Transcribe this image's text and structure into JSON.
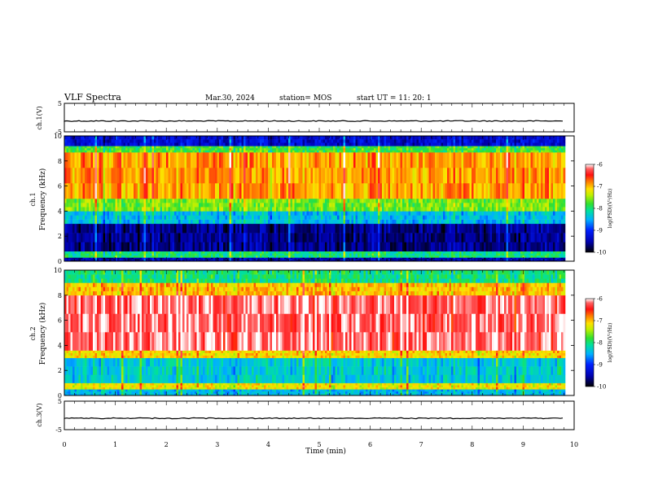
{
  "header": {
    "title": "VLF Spectra",
    "date": "Mar.30, 2024",
    "station": "station= MOS",
    "start_ut": "start  UT =   11: 20: 1"
  },
  "chart_data": {
    "type": "heatmap",
    "title": "VLF Spectra",
    "xlabel": "Time  (min)",
    "xlim": [
      0,
      10
    ],
    "xticks": [
      "0",
      "1",
      "2",
      "3",
      "4",
      "5",
      "6",
      "7",
      "8",
      "9",
      "10"
    ],
    "data_end_min": 9.82,
    "panels": [
      {
        "id": "ch1-waveform",
        "type": "line",
        "ylabel": "ch.1(V)",
        "ylim": [
          -5,
          5
        ],
        "yticks": [
          "5",
          "-5"
        ],
        "level_v": -1.2
      },
      {
        "id": "ch1-spectrogram",
        "type": "heatmap",
        "ylabel_top": "ch.1",
        "ylabel": "Frequency (kHz)",
        "ylim": [
          0,
          10
        ],
        "yticks": [
          "0",
          "2",
          "4",
          "6",
          "8",
          "10"
        ],
        "bands_khz": [
          {
            "from": 0.0,
            "to": 0.3,
            "level": -9.5
          },
          {
            "from": 0.3,
            "to": 0.8,
            "level": -8.0
          },
          {
            "from": 0.8,
            "to": 3.0,
            "level": -9.6
          },
          {
            "from": 3.0,
            "to": 4.0,
            "level": -8.4
          },
          {
            "from": 4.0,
            "to": 5.0,
            "level": -7.6
          },
          {
            "from": 5.0,
            "to": 8.7,
            "level": -6.9
          },
          {
            "from": 8.7,
            "to": 9.2,
            "level": -7.8
          },
          {
            "from": 9.2,
            "to": 10.0,
            "level": -9.3
          }
        ],
        "colorbar": {
          "label": "log(PSD)(V²/Hz)",
          "min": -10,
          "max": -6,
          "ticks": [
            "-6",
            "-7",
            "-8",
            "-9",
            "-10"
          ]
        }
      },
      {
        "id": "ch2-spectrogram",
        "type": "heatmap",
        "ylabel_top": "ch.2",
        "ylabel": "Frequency (kHz)",
        "ylim": [
          0,
          10
        ],
        "yticks": [
          "0",
          "2",
          "4",
          "6",
          "8",
          "10"
        ],
        "bands_khz": [
          {
            "from": 0.0,
            "to": 0.5,
            "level": -8.4
          },
          {
            "from": 0.5,
            "to": 1.0,
            "level": -7.2
          },
          {
            "from": 1.0,
            "to": 3.0,
            "level": -8.3
          },
          {
            "from": 3.0,
            "to": 3.6,
            "level": -7.1
          },
          {
            "from": 3.6,
            "to": 8.0,
            "level": -6.2
          },
          {
            "from": 8.0,
            "to": 9.0,
            "level": -7.0
          },
          {
            "from": 9.0,
            "to": 10.0,
            "level": -8.0
          }
        ],
        "colorbar": {
          "label": "log(PSD)(V²/Hz)",
          "min": -10,
          "max": -6,
          "ticks": [
            "-6",
            "-7",
            "-8",
            "-9",
            "-10"
          ]
        }
      },
      {
        "id": "ch3-waveform",
        "type": "line",
        "ylabel": "ch.3(V)",
        "ylim": [
          -5,
          5
        ],
        "yticks": [
          "5",
          "-5"
        ],
        "level_v": -1.0
      }
    ]
  }
}
